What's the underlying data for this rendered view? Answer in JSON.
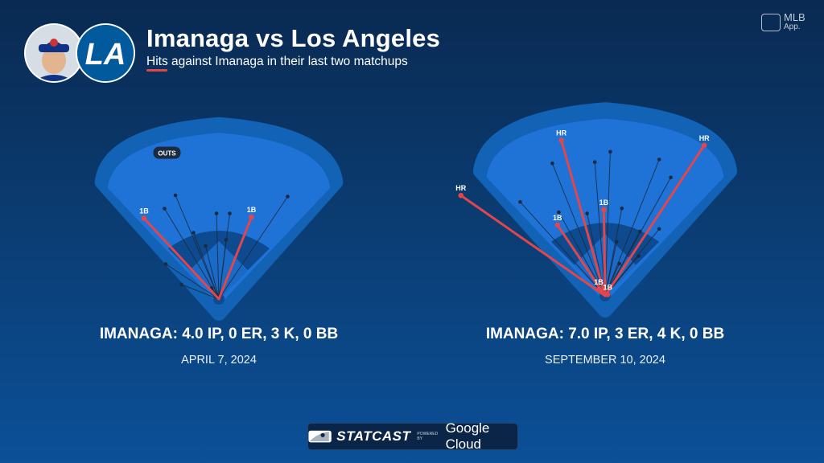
{
  "header": {
    "title": "Imanaga vs Los Angeles",
    "subtitle": "Hits against Imanaga in their last two matchups"
  },
  "brand": {
    "mlb_line1": "MLB",
    "mlb_line2": "App."
  },
  "footer": {
    "statcast": "STATCAST",
    "powered": "POWERED BY",
    "cloud": "Google Cloud"
  },
  "colors": {
    "hit": "#e0474c",
    "out": "#1b2a3e",
    "field_outer": "#1262b5",
    "field_inner": "#1f73d6",
    "infield": "#0e4a8f"
  },
  "chart_data": [
    {
      "type": "scatter",
      "title": "IMANAGA: 4.0 IP, 0 ER, 3 K, 0 BB",
      "subtitle": "APRIL 7, 2024",
      "legend_label": "OUTS",
      "hits": [
        {
          "label": "1B",
          "x": -0.62,
          "y": 0.67
        },
        {
          "label": "1B",
          "x": 0.27,
          "y": 0.68
        }
      ],
      "outs": [
        {
          "x": -0.36,
          "y": 0.86
        },
        {
          "x": -0.45,
          "y": 0.75
        },
        {
          "x": 0.57,
          "y": 0.85
        },
        {
          "x": -0.02,
          "y": 0.71
        },
        {
          "x": -0.21,
          "y": 0.55
        },
        {
          "x": 0.09,
          "y": 0.71
        },
        {
          "x": -0.11,
          "y": 0.44
        },
        {
          "x": 0.06,
          "y": 0.49
        },
        {
          "x": -0.44,
          "y": 0.29
        },
        {
          "x": -0.31,
          "y": 0.12
        },
        {
          "x": -0.06,
          "y": 0.09
        }
      ]
    },
    {
      "type": "scatter",
      "title": "IMANAGA: 7.0 IP, 3 ER, 4 K, 0 BB",
      "subtitle": "SEPTEMBER 10, 2024",
      "hits": [
        {
          "label": "HR",
          "x": -1.12,
          "y": 0.78
        },
        {
          "label": "HR",
          "x": -0.34,
          "y": 1.21
        },
        {
          "label": "HR",
          "x": 0.77,
          "y": 1.17
        },
        {
          "label": "1B",
          "x": -0.37,
          "y": 0.55
        },
        {
          "label": "1B",
          "x": -0.01,
          "y": 0.67
        },
        {
          "label": "1B",
          "x": -0.05,
          "y": 0.05
        },
        {
          "label": "1B",
          "x": 0.02,
          "y": 0.01
        }
      ],
      "outs": [
        {
          "x": -0.41,
          "y": 1.03
        },
        {
          "x": -0.08,
          "y": 1.04
        },
        {
          "x": 0.42,
          "y": 1.06
        },
        {
          "x": 0.04,
          "y": 1.12
        },
        {
          "x": 0.51,
          "y": 0.92
        },
        {
          "x": -0.66,
          "y": 0.73
        },
        {
          "x": 0.42,
          "y": 0.52
        },
        {
          "x": -0.36,
          "y": 0.65
        },
        {
          "x": 0.13,
          "y": 0.68
        },
        {
          "x": 0.27,
          "y": 0.5
        },
        {
          "x": 0.09,
          "y": 0.42
        },
        {
          "x": 0.26,
          "y": 0.31
        },
        {
          "x": 0.11,
          "y": 0.25
        },
        {
          "x": -0.14,
          "y": 0.64
        }
      ]
    }
  ]
}
